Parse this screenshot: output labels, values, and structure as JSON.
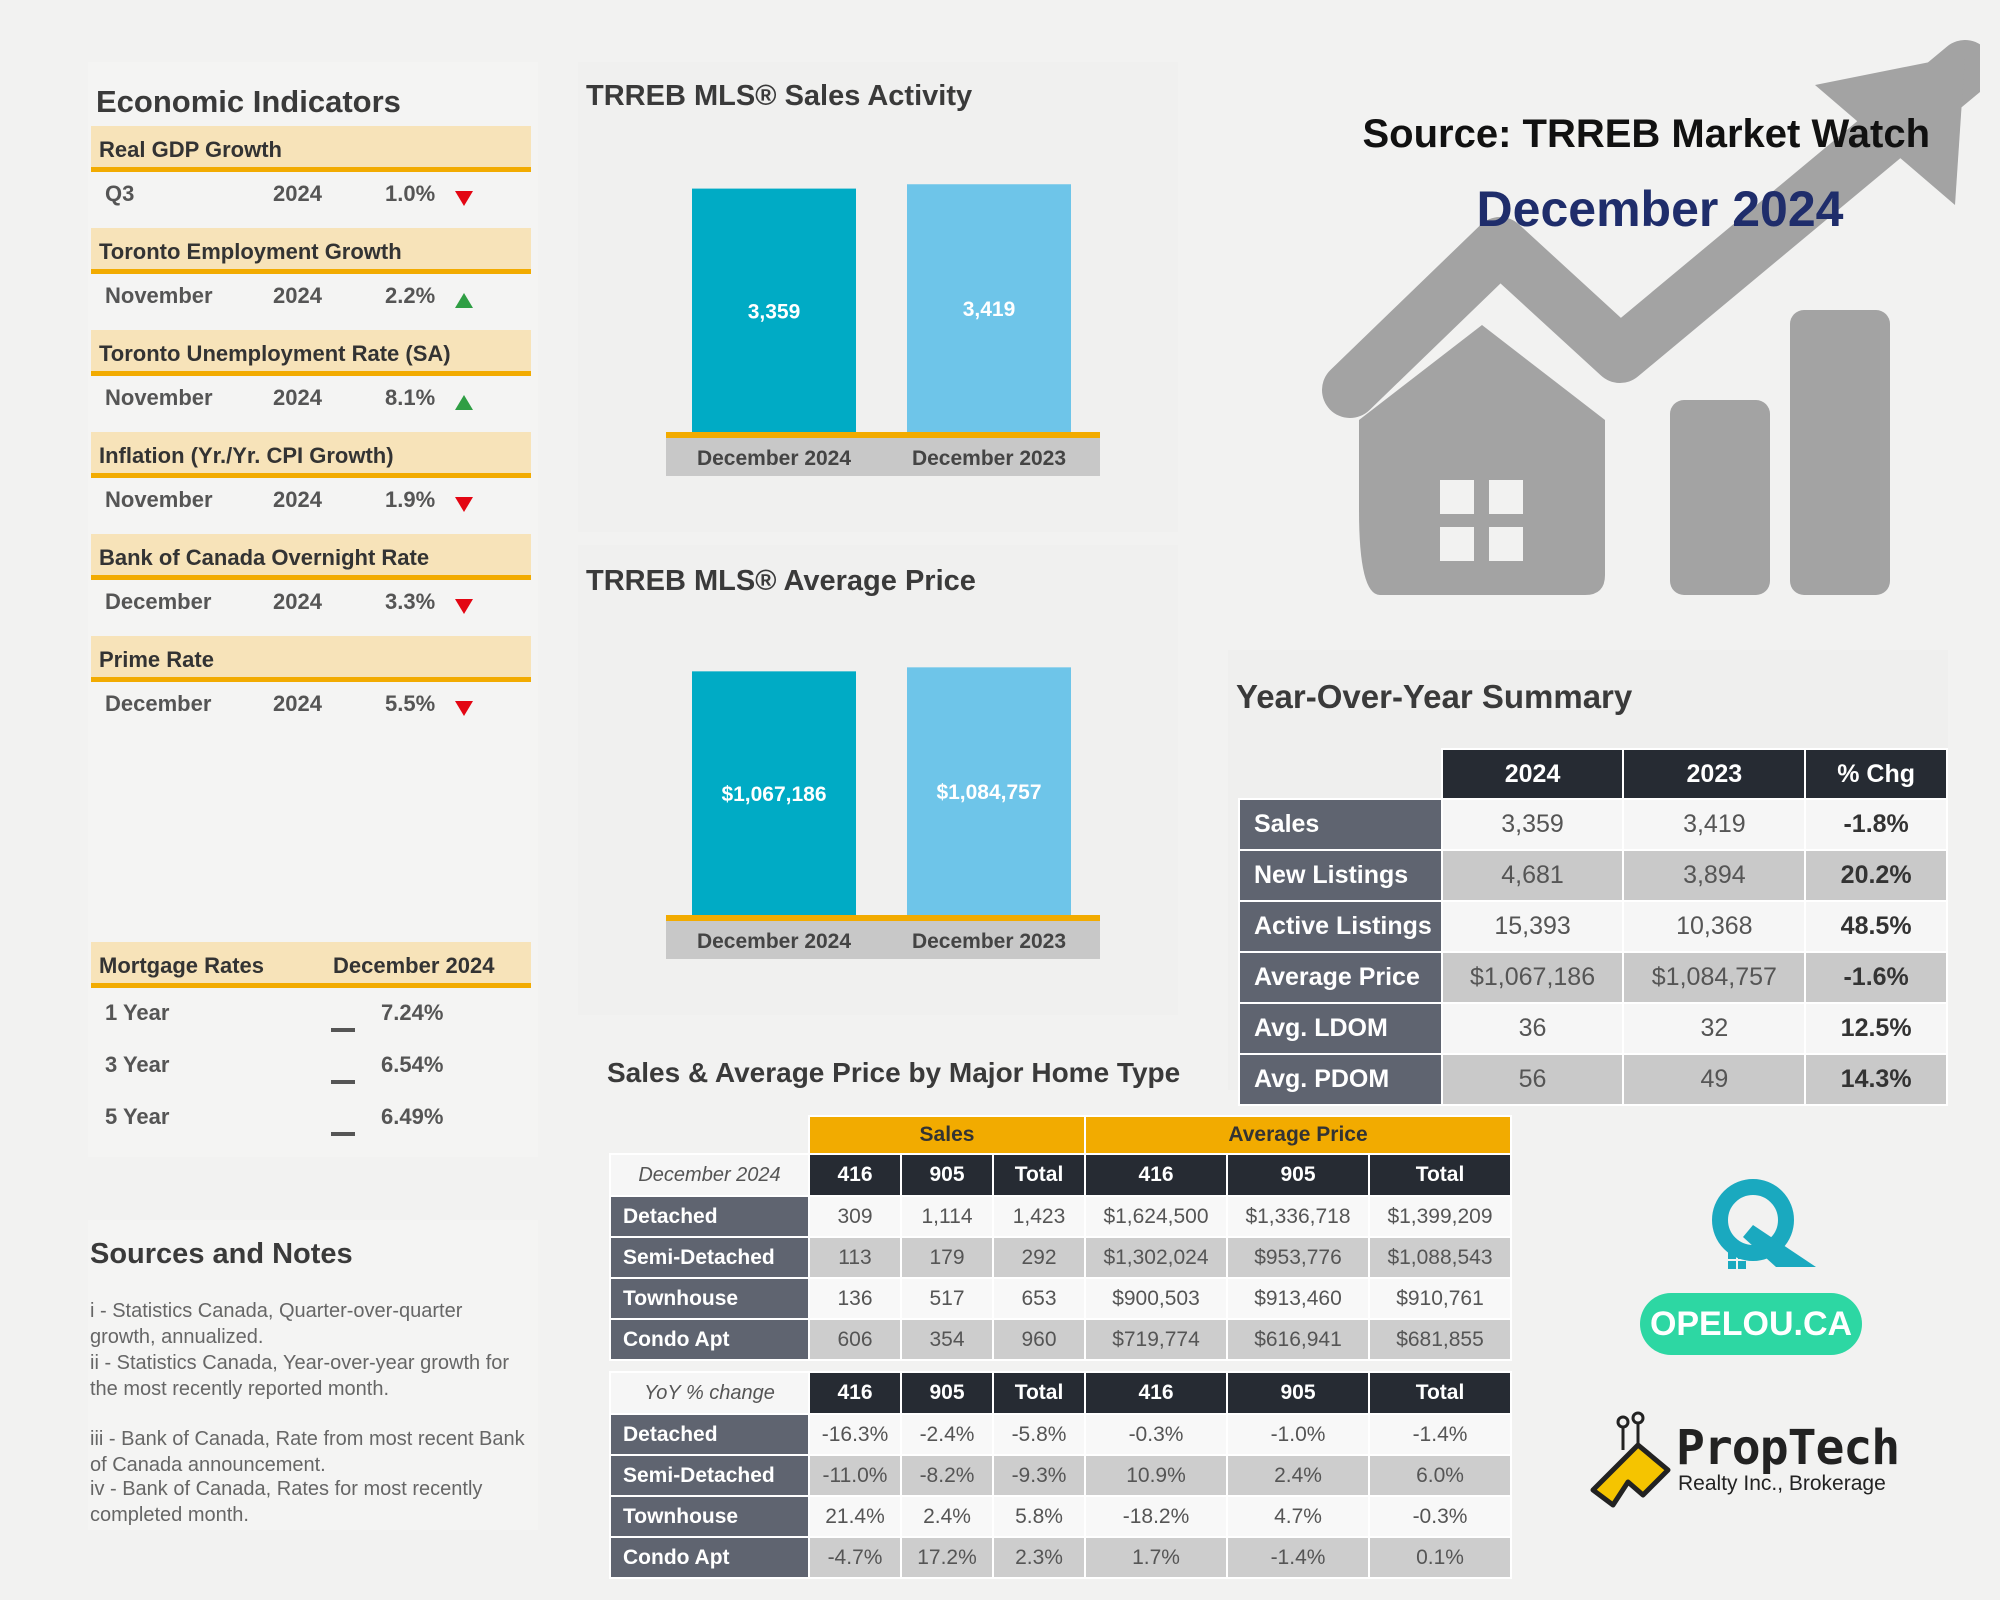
{
  "header": {
    "source": "Source: TRREB Market Watch",
    "month": "December 2024"
  },
  "economic": {
    "title": "Economic Indicators",
    "indicators": [
      {
        "name": "Real GDP Growth",
        "period": "Q3",
        "year": "2024",
        "value": "1.0%",
        "trend": "down"
      },
      {
        "name": "Toronto Employment Growth",
        "period": "November",
        "year": "2024",
        "value": "2.2%",
        "trend": "up"
      },
      {
        "name": "Toronto Unemployment Rate (SA)",
        "period": "November",
        "year": "2024",
        "value": "8.1%",
        "trend": "up"
      },
      {
        "name": "Inflation (Yr./Yr. CPI Growth)",
        "period": "November",
        "year": "2024",
        "value": "1.9%",
        "trend": "down"
      },
      {
        "name": "Bank of Canada Overnight Rate",
        "period": "December",
        "year": "2024",
        "value": "3.3%",
        "trend": "down"
      },
      {
        "name": "Prime Rate",
        "period": "December",
        "year": "2024",
        "value": "5.5%",
        "trend": "down"
      }
    ],
    "mortgage": {
      "label": "Mortgage Rates",
      "period": "December 2024",
      "rows": [
        {
          "term": "1 Year",
          "rate": "7.24%"
        },
        {
          "term": "3 Year",
          "rate": "6.54%"
        },
        {
          "term": "5 Year",
          "rate": "6.49%"
        }
      ]
    }
  },
  "notes": {
    "title": "Sources and Notes",
    "items": [
      "i - Statistics Canada, Quarter-over-quarter growth, annualized.",
      "ii - Statistics Canada, Year-over-year growth for the most recently reported month.",
      "iii - Bank of Canada, Rate from most recent Bank of Canada announcement.",
      "iv - Bank of Canada, Rates for most recently completed month."
    ]
  },
  "chart_data": [
    {
      "type": "bar",
      "title": "TRREB MLS® Sales Activity",
      "categories": [
        "December 2024",
        "December 2023"
      ],
      "values": [
        3359,
        3419
      ],
      "value_labels": [
        "3,359",
        "3,419"
      ],
      "colors": [
        "#00abc5",
        "#6ec5e9"
      ],
      "ylim": [
        0,
        3450
      ]
    },
    {
      "type": "bar",
      "title": "TRREB MLS® Average Price",
      "categories": [
        "December 2024",
        "December 2023"
      ],
      "values": [
        1067186,
        1084757
      ],
      "value_labels": [
        "$1,067,186",
        "$1,084,757"
      ],
      "colors": [
        "#00abc5",
        "#6ec5e9"
      ],
      "ylim": [
        0,
        1095000
      ]
    }
  ],
  "yoy": {
    "title": "Year-Over-Year Summary",
    "columns": [
      "2024",
      "2023",
      "% Chg"
    ],
    "rows": [
      {
        "label": "Sales",
        "v2024": "3,359",
        "v2023": "3,419",
        "chg": "-1.8%"
      },
      {
        "label": "New Listings",
        "v2024": "4,681",
        "v2023": "3,894",
        "chg": "20.2%"
      },
      {
        "label": "Active Listings",
        "v2024": "15,393",
        "v2023": "10,368",
        "chg": "48.5%"
      },
      {
        "label": "Average Price",
        "v2024": "$1,067,186",
        "v2023": "$1,084,757",
        "chg": "-1.6%"
      },
      {
        "label": "Avg. LDOM",
        "v2024": "36",
        "v2023": "32",
        "chg": "12.5%"
      },
      {
        "label": "Avg. PDOM",
        "v2024": "56",
        "v2023": "49",
        "chg": "14.3%"
      }
    ]
  },
  "home_types": {
    "title": "Sales & Average Price by Major Home Type",
    "group_sales": "Sales",
    "group_price": "Average Price",
    "columns": [
      "416",
      "905",
      "Total"
    ],
    "current_label": "December 2024",
    "current": [
      {
        "type": "Detached",
        "s416": "309",
        "s905": "1,114",
        "stotal": "1,423",
        "p416": "$1,624,500",
        "p905": "$1,336,718",
        "ptotal": "$1,399,209"
      },
      {
        "type": "Semi-Detached",
        "s416": "113",
        "s905": "179",
        "stotal": "292",
        "p416": "$1,302,024",
        "p905": "$953,776",
        "ptotal": "$1,088,543"
      },
      {
        "type": "Townhouse",
        "s416": "136",
        "s905": "517",
        "stotal": "653",
        "p416": "$900,503",
        "p905": "$913,460",
        "ptotal": "$910,761"
      },
      {
        "type": "Condo Apt",
        "s416": "606",
        "s905": "354",
        "stotal": "960",
        "p416": "$719,774",
        "p905": "$616,941",
        "ptotal": "$681,855"
      }
    ],
    "change_label": "YoY % change",
    "change": [
      {
        "type": "Detached",
        "s416": "-16.3%",
        "s905": "-2.4%",
        "stotal": "-5.8%",
        "p416": "-0.3%",
        "p905": "-1.0%",
        "ptotal": "-1.4%"
      },
      {
        "type": "Semi-Detached",
        "s416": "-11.0%",
        "s905": "-8.2%",
        "stotal": "-9.3%",
        "p416": "10.9%",
        "p905": "2.4%",
        "ptotal": "6.0%"
      },
      {
        "type": "Townhouse",
        "s416": "21.4%",
        "s905": "2.4%",
        "stotal": "5.8%",
        "p416": "-18.2%",
        "p905": "4.7%",
        "ptotal": "-0.3%"
      },
      {
        "type": "Condo Apt",
        "s416": "-4.7%",
        "s905": "17.2%",
        "stotal": "2.3%",
        "p416": "1.7%",
        "p905": "-1.4%",
        "ptotal": "0.1%"
      }
    ]
  },
  "brand": {
    "site": "OPELOU.CA",
    "name": "PropTech",
    "sub": "Realty Inc., Brokerage"
  },
  "colors": {
    "accent": "#f2ab00",
    "bar_2024": "#00abc5",
    "bar_2023": "#6ec5e9",
    "header_dark": "#262b33",
    "row_label": "#5f6470",
    "navy": "#1f2d6b",
    "teal_brand": "#2dd7a3",
    "trend_down": "#e30613",
    "trend_up": "#2f9e44",
    "graphic_gray": "#a3a3a3"
  }
}
